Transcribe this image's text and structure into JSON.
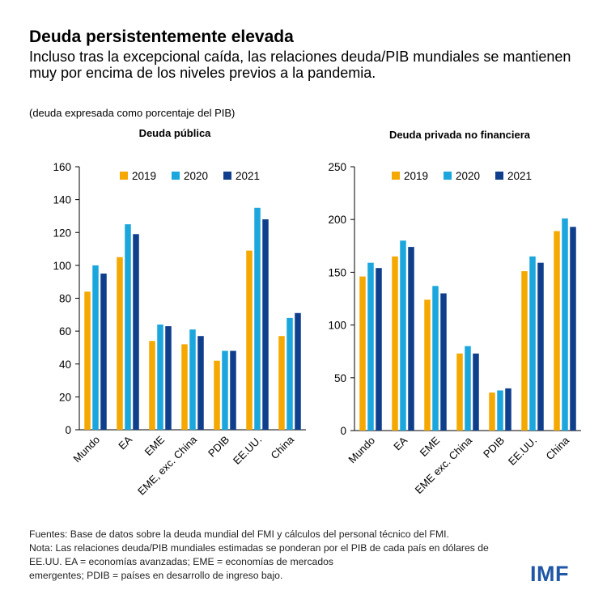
{
  "title": "Deuda persistentemente elevada",
  "subtitle": "Incluso tras la excepcional caída, las relaciones deuda/PIB mundiales se mantienen muy por encima de los niveles previos a la pandemia.",
  "units": "(deuda expresada como porcentaje del PIB)",
  "sources": [
    "Fuentes: Base de datos sobre la deuda mundial del FMI y cálculos del personal técnico del FMI.",
    "Nota: Las relaciones deuda/PIB mundiales estimadas se ponderan por el PIB de cada país en dólares de",
    "EE.UU. EA = economías avanzadas; EME = economías de mercados",
    "emergentes; PDIB = países en desarrollo de ingreso bajo."
  ],
  "logo": "IMF",
  "colors": {
    "2019": "#f5a800",
    "2020": "#1ba7dd",
    "2021": "#0f3e8c"
  },
  "chart_data": [
    {
      "type": "bar",
      "title": "Deuda pública",
      "categories": [
        "Mundo",
        "EA",
        "EME",
        "EME, exc. China",
        "PDIB",
        "EE.UU.",
        "China"
      ],
      "series": [
        {
          "name": "2019",
          "values": [
            84,
            105,
            54,
            52,
            42,
            109,
            57
          ]
        },
        {
          "name": "2020",
          "values": [
            100,
            125,
            64,
            61,
            48,
            135,
            68
          ]
        },
        {
          "name": "2021",
          "values": [
            95,
            119,
            63,
            57,
            48,
            128,
            71
          ]
        }
      ],
      "yticks": [
        "0",
        "20",
        "40",
        "60",
        "80",
        "100",
        "120",
        "140",
        "160"
      ],
      "ylim": [
        0,
        160
      ],
      "legend": "top"
    },
    {
      "type": "bar",
      "title": "Deuda privada no financiera",
      "categories": [
        "Mundo",
        "EA",
        "EME",
        "EME exc. China",
        "PDIB",
        "EE.UU.",
        "China"
      ],
      "series": [
        {
          "name": "2019",
          "values": [
            146,
            165,
            124,
            73,
            36,
            151,
            189
          ]
        },
        {
          "name": "2020",
          "values": [
            159,
            180,
            137,
            80,
            38,
            165,
            201
          ]
        },
        {
          "name": "2021",
          "values": [
            154,
            174,
            130,
            73,
            40,
            159,
            193
          ]
        }
      ],
      "yticks": [
        "0",
        "50",
        "100",
        "150",
        "200",
        "250"
      ],
      "ylim": [
        0,
        250
      ],
      "legend": "top"
    }
  ]
}
